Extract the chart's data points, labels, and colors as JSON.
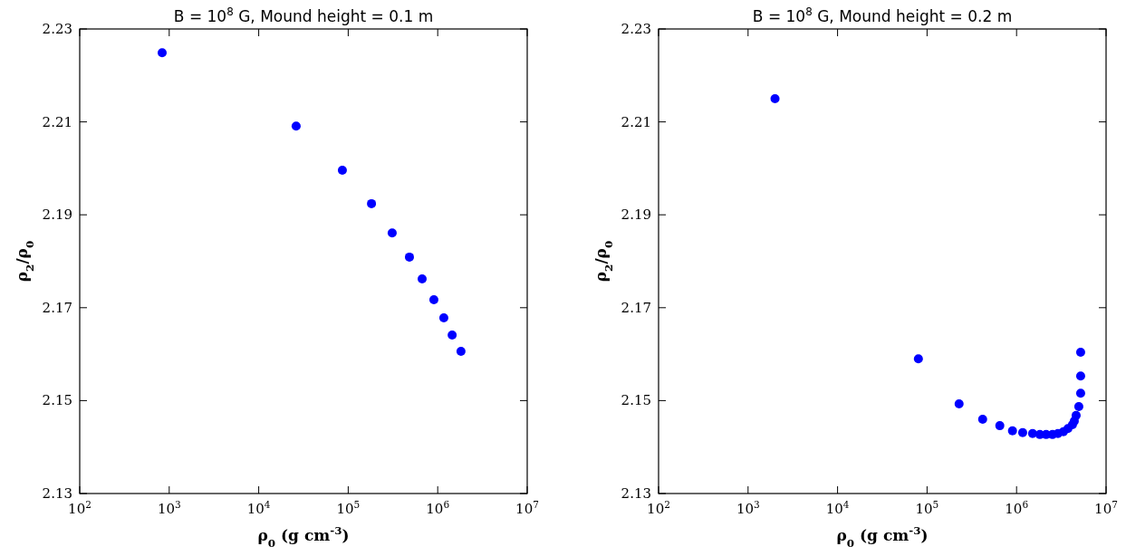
{
  "chart_data": [
    {
      "type": "scatter",
      "title": "B = 10$^{8}$ G, Mound height = 0.1 m",
      "xlabel": "ρ$_{0}$  (g cm$^{-3}$)",
      "ylabel": "ρ$_{2}$/ρ$_{0}$",
      "log": "x",
      "marker": "circle",
      "xlim": [
        100,
        10000000
      ],
      "xticks": [
        {
          "value": 100,
          "label": "10$^{2}$"
        },
        {
          "value": 1000,
          "label": "10$^{3}$"
        },
        {
          "value": 10000,
          "label": "10$^{4}$"
        },
        {
          "value": 100000,
          "label": "10$^{5}$"
        },
        {
          "value": 1000000,
          "label": "10$^{6}$"
        },
        {
          "value": 10000000,
          "label": "10$^{7}$"
        }
      ],
      "ylim": [
        2.13,
        2.23
      ],
      "yticks": [
        2.13,
        2.15,
        2.17,
        2.19,
        2.21,
        2.23
      ],
      "series": [
        {
          "color": "#0000ff",
          "x": [
            834,
            26200,
            86000,
            182000,
            310000,
            483000,
            670000,
            906000,
            1170000,
            1450000,
            1820000
          ],
          "values": [
            2.2249,
            2.2091,
            2.1996,
            2.1924,
            2.1861,
            2.1809,
            2.1762,
            2.1717,
            2.1678,
            2.1641,
            2.1606
          ]
        }
      ]
    },
    {
      "type": "scatter",
      "title": "B = 10$^{8}$ G, Mound height = 0.2 m",
      "xlabel": "ρ$_{0}$  (g cm$^{-3}$)",
      "ylabel": "ρ$_{2}$/ρ$_{0}$",
      "log": "x",
      "marker": "circle",
      "xlim": [
        100,
        10000000
      ],
      "xticks": [
        {
          "value": 100,
          "label": "10$^{2}$"
        },
        {
          "value": 1000,
          "label": "10$^{3}$"
        },
        {
          "value": 10000,
          "label": "10$^{4}$"
        },
        {
          "value": 100000,
          "label": "10$^{5}$"
        },
        {
          "value": 1000000,
          "label": "10$^{6}$"
        },
        {
          "value": 10000000,
          "label": "10$^{7}$"
        }
      ],
      "ylim": [
        2.13,
        2.23
      ],
      "yticks": [
        2.13,
        2.15,
        2.17,
        2.19,
        2.21,
        2.23
      ],
      "series": [
        {
          "color": "#0000ff",
          "x": [
            2000,
            80000,
            228000,
            418000,
            650000,
            900000,
            1170000,
            1510000,
            1820000,
            2140000,
            2520000,
            2900000,
            3340000,
            3750000,
            4210000,
            4420000,
            4630000,
            4960000,
            5200000,
            5200000,
            5200000
          ],
          "values": [
            2.215,
            2.159,
            2.1493,
            2.146,
            2.1446,
            2.1435,
            2.1431,
            2.1429,
            2.1427,
            2.1427,
            2.1427,
            2.1429,
            2.1433,
            2.144,
            2.1448,
            2.1456,
            2.1468,
            2.1487,
            2.1516,
            2.1553,
            2.1604
          ]
        }
      ]
    }
  ]
}
